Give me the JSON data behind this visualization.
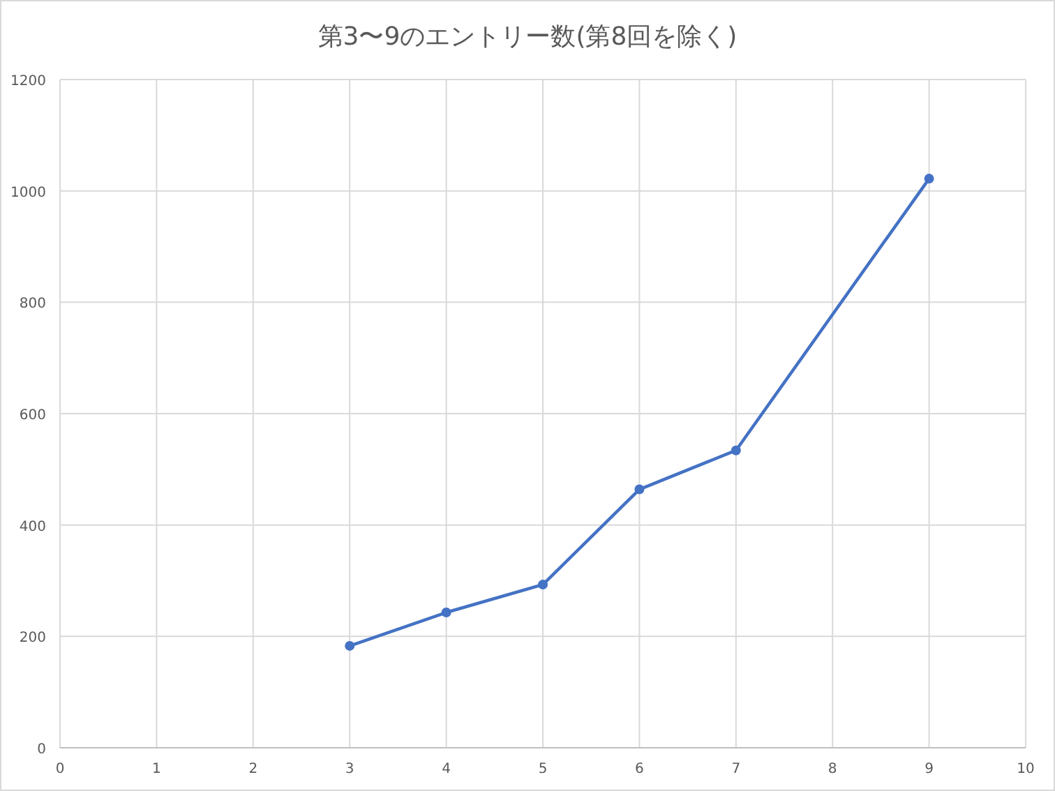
{
  "chart_data": {
    "type": "line",
    "title": "第3〜9のエントリー数(第8回を除く)",
    "x": [
      3,
      4,
      5,
      6,
      7,
      9
    ],
    "series": [
      {
        "color": "#4472c4",
        "values": [
          183,
          243,
          293,
          464,
          534,
          1022
        ]
      }
    ],
    "xlim": [
      0,
      10
    ],
    "xticks": [
      0,
      1,
      2,
      3,
      4,
      5,
      6,
      7,
      8,
      9,
      10
    ],
    "ylim": [
      0,
      1200
    ],
    "yticks": [
      0,
      200,
      400,
      600,
      800,
      1000,
      1200
    ],
    "grid": true,
    "marker": "circle",
    "line_style": "solid"
  }
}
